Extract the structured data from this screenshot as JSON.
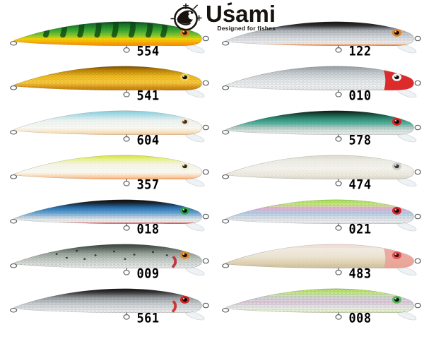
{
  "brand": {
    "name": "Usami",
    "tagline": "Designed for fishes"
  },
  "colors": {
    "background": "#ffffff",
    "label_text": "#000000",
    "ring_wire": "#5a5f63",
    "lip": "#edf1f3",
    "lip_edge": "#c9ced2",
    "logo_ink": "#17130e"
  },
  "lures": {
    "left_column": [
      {
        "label": "554",
        "overlay": 0.22,
        "stripes": "#0a4712",
        "eye_ring": "#e28318",
        "eye_pupil": "#2a1404",
        "stops": [
          [
            0,
            "#0b3a0e"
          ],
          [
            10,
            "#15702a"
          ],
          [
            38,
            "#3fae2e"
          ],
          [
            58,
            "#8ccc30"
          ],
          [
            72,
            "#ffd400"
          ],
          [
            88,
            "#ffaa00"
          ],
          [
            100,
            "#ff8800"
          ]
        ]
      },
      {
        "label": "541",
        "overlay": 0.3,
        "eye_ring": "#f2cf5a",
        "eye_pupil": "#161006",
        "stops": [
          [
            0,
            "#7a4c00"
          ],
          [
            14,
            "#b97f00"
          ],
          [
            42,
            "#f6c01e"
          ],
          [
            68,
            "#ffcf3e"
          ],
          [
            88,
            "#e09612"
          ],
          [
            100,
            "#c07c08"
          ]
        ]
      },
      {
        "label": "604",
        "overlay": 0.1,
        "eye_ring": "#efe9da",
        "eye_pupil": "#4c2a10",
        "stops": [
          [
            0,
            "#86ccdc"
          ],
          [
            16,
            "#aadee8"
          ],
          [
            40,
            "#eef4f2"
          ],
          [
            72,
            "#fbfbf4"
          ],
          [
            90,
            "#fbe4c0"
          ],
          [
            100,
            "#ffc386"
          ]
        ]
      },
      {
        "label": "357",
        "overlay": 0.08,
        "eye_ring": "#f2efda",
        "eye_pupil": "#3c280e",
        "stops": [
          [
            0,
            "#cfe040"
          ],
          [
            14,
            "#eaf27e"
          ],
          [
            38,
            "#f6f7e8"
          ],
          [
            72,
            "#fcfbf2"
          ],
          [
            90,
            "#fed2a8"
          ],
          [
            100,
            "#ff9e5e"
          ]
        ]
      },
      {
        "label": "018",
        "overlay": 0.3,
        "eye_ring": "#33a44e",
        "eye_pupil": "#061006",
        "stops": [
          [
            0,
            "#0c0909"
          ],
          [
            14,
            "#162430"
          ],
          [
            34,
            "#2b76ba"
          ],
          [
            52,
            "#5ba0d4"
          ],
          [
            68,
            "#aac8e0"
          ],
          [
            80,
            "#e6ecee"
          ],
          [
            92,
            "#f4f6f6"
          ],
          [
            100,
            "#e03030"
          ]
        ]
      },
      {
        "label": "009",
        "overlay": 0.35,
        "dots": "#252525",
        "gill": "#c22233",
        "eye_ring": "#dc8c2e",
        "eye_pupil": "#201206",
        "stops": [
          [
            0,
            "#35413a"
          ],
          [
            16,
            "#5a665e"
          ],
          [
            38,
            "#9aa69e"
          ],
          [
            62,
            "#c6cec8"
          ],
          [
            85,
            "#e2e6e2"
          ],
          [
            100,
            "#eef0ee"
          ]
        ]
      },
      {
        "label": "561",
        "overlay": 0.35,
        "gill": "#d02424",
        "eye_ring": "#d42020",
        "eye_pupil": "#0e0e0e",
        "stops": [
          [
            0,
            "#101010"
          ],
          [
            15,
            "#343434"
          ],
          [
            38,
            "#9ca2a6"
          ],
          [
            62,
            "#ccd2d4"
          ],
          [
            85,
            "#e8eaec"
          ],
          [
            100,
            "#f2f4f4"
          ]
        ]
      }
    ],
    "right_column": [
      {
        "label": "122",
        "overlay": 0.32,
        "eye_ring": "#e08326",
        "eye_pupil": "#170b02",
        "stops": [
          [
            0,
            "#101010"
          ],
          [
            16,
            "#2e2e2e"
          ],
          [
            36,
            "#aeb4ba"
          ],
          [
            58,
            "#d2d6da"
          ],
          [
            78,
            "#e9ebee"
          ],
          [
            90,
            "#f4f4f4"
          ],
          [
            100,
            "#ff7a1e"
          ]
        ]
      },
      {
        "label": "010",
        "overlay": 0.3,
        "head": "#dd2b2b",
        "head_opacity": 1,
        "eye_ring": "#f2f2f2",
        "eye_pupil": "#111111",
        "stops": [
          [
            0,
            "#97a0a6"
          ],
          [
            28,
            "#c9d0d4"
          ],
          [
            60,
            "#e9edef"
          ],
          [
            88,
            "#f4f6f6"
          ],
          [
            100,
            "#d9dee0"
          ]
        ]
      },
      {
        "label": "578",
        "overlay": 0.3,
        "eye_ring": "#dd2222",
        "eye_pupil": "#0a0a0a",
        "stops": [
          [
            0,
            "#0a120e"
          ],
          [
            14,
            "#174c3c"
          ],
          [
            34,
            "#2f9478"
          ],
          [
            52,
            "#52b4a0"
          ],
          [
            68,
            "#a8ccc4"
          ],
          [
            82,
            "#dce6e2"
          ],
          [
            100,
            "#eef2f0"
          ]
        ]
      },
      {
        "label": "474",
        "overlay": 0.1,
        "eye_ring": "#cfcfca",
        "eye_pupil": "#3c3c3c",
        "stops": [
          [
            0,
            "#dedccf"
          ],
          [
            22,
            "#efeee6"
          ],
          [
            55,
            "#f6f5ef"
          ],
          [
            85,
            "#ece9dd"
          ],
          [
            100,
            "#d9d6c6"
          ]
        ]
      },
      {
        "label": "021",
        "overlay": 0.3,
        "eye_ring": "#dd2424",
        "eye_pupil": "#0c0c0c",
        "stops": [
          [
            0,
            "#a2e44c"
          ],
          [
            18,
            "#c8f07e"
          ],
          [
            38,
            "#e6b4de"
          ],
          [
            56,
            "#b6d2ea"
          ],
          [
            74,
            "#dde3ea"
          ],
          [
            90,
            "#f1f3f5"
          ],
          [
            100,
            "#e4e8ec"
          ]
        ]
      },
      {
        "label": "483",
        "overlay": 0.1,
        "head": "#eb9f96",
        "head_opacity": 0.85,
        "eye_ring": "#e25555",
        "eye_pupil": "#551111",
        "stops": [
          [
            0,
            "#f2dcd2"
          ],
          [
            22,
            "#f4eee4"
          ],
          [
            52,
            "#efe7d5"
          ],
          [
            78,
            "#e2d3b2"
          ],
          [
            100,
            "#cfc09c"
          ]
        ]
      },
      {
        "label": "008",
        "overlay": 0.35,
        "eye_ring": "#5cb85c",
        "eye_pupil": "#0d160d",
        "stops": [
          [
            0,
            "#a8dd58"
          ],
          [
            16,
            "#c9ee88"
          ],
          [
            38,
            "#d6dade"
          ],
          [
            58,
            "#e4cede"
          ],
          [
            76,
            "#ebeef0"
          ],
          [
            90,
            "#eef6da"
          ],
          [
            100,
            "#d8ecae"
          ]
        ]
      }
    ]
  }
}
